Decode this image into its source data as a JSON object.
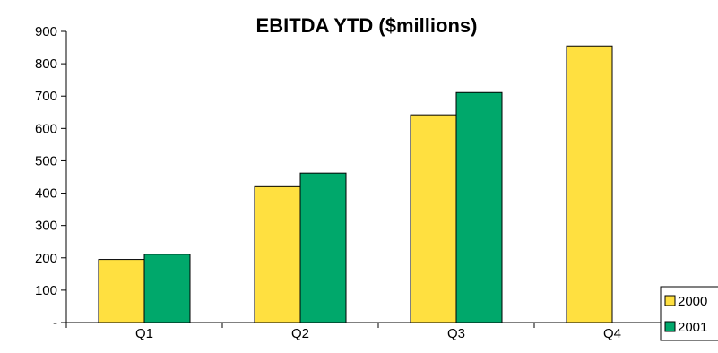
{
  "chart_data": {
    "type": "bar",
    "title": "EBITDA YTD ($millions)",
    "xlabel": "",
    "ylabel": "",
    "categories": [
      "Q1",
      "Q2",
      "Q3",
      "Q4"
    ],
    "series": [
      {
        "name": "2000",
        "values": [
          195,
          420,
          642,
          855
        ],
        "color": "#FFE040"
      },
      {
        "name": "2001",
        "values": [
          211,
          462,
          711,
          null
        ],
        "color": "#00A86B"
      }
    ],
    "ylim": [
      0,
      900
    ],
    "yticks": [
      0,
      100,
      200,
      300,
      400,
      500,
      600,
      700,
      800,
      900
    ],
    "ytick_labels": [
      "-",
      "100",
      "200",
      "300",
      "400",
      "500",
      "600",
      "700",
      "800",
      "900"
    ],
    "grid": false,
    "legend_position": "bottom-right"
  }
}
